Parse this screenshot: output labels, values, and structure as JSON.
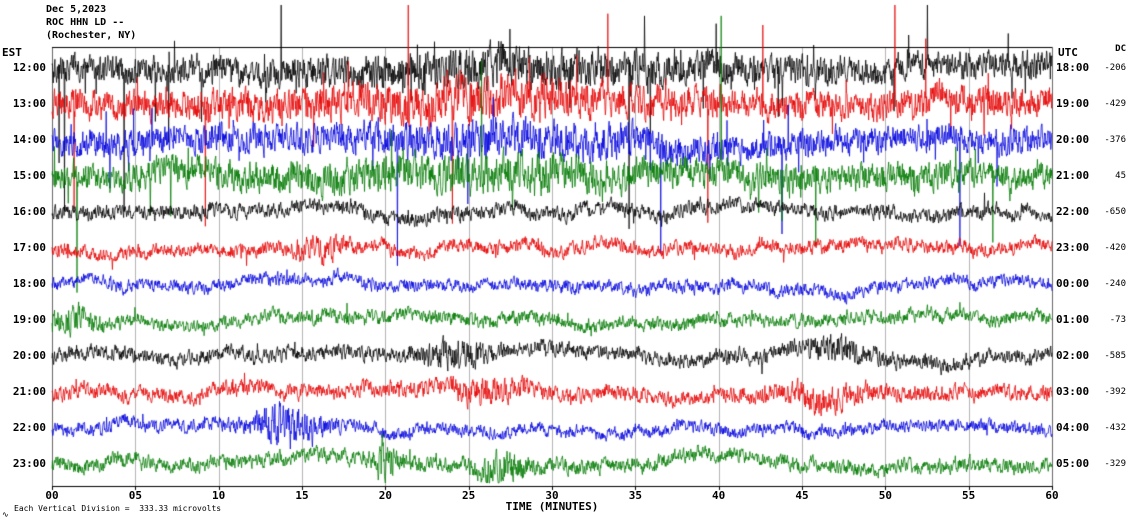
{
  "header": {
    "date": "Dec 5,2023",
    "station": "ROC HHN LD --",
    "location": "(Rochester, NY)"
  },
  "axis": {
    "left_tz": "EST",
    "right_tz": "UTC",
    "dc_header": "DC",
    "x_label": "TIME (MINUTES)",
    "x_ticks": [
      "00",
      "05",
      "10",
      "15",
      "20",
      "25",
      "30",
      "35",
      "40",
      "45",
      "50",
      "55",
      "60"
    ]
  },
  "footer": {
    "scale_note": "Each Vertical Division =  333.33 microvolts",
    "watermark": "∿"
  },
  "chart_data": {
    "type": "line",
    "title": "Helicorder ROC HHN LD -- Dec 5,2023",
    "xlabel": "TIME (MINUTES)",
    "x_range": [
      0,
      60
    ],
    "x_tick_step": 5,
    "left_time_zone": "EST",
    "right_time_zone": "UTC",
    "vertical_division_microvolts": 333.33,
    "legend_position": "none",
    "grid": true,
    "colors": {
      "black": "#000000",
      "red": "#e60000",
      "blue": "#0000dd",
      "green": "#007a00"
    },
    "rows": [
      {
        "est": "12:00",
        "utc": "18:00",
        "dc": "-206",
        "color": "black",
        "amp": 11,
        "sp": 0.03,
        "sa": 40,
        "bp": 0.002,
        "ba": 180,
        "events": [
          [
            28,
            12,
            6
          ]
        ]
      },
      {
        "est": "13:00",
        "utc": "19:00",
        "dc": "-429",
        "color": "red",
        "amp": 12,
        "sp": 0.03,
        "sa": 42,
        "bp": 0.002,
        "ba": 160,
        "events": [
          [
            25,
            10,
            6
          ]
        ]
      },
      {
        "est": "14:00",
        "utc": "20:00",
        "dc": "-376",
        "color": "blue",
        "amp": 11,
        "sp": 0.025,
        "sa": 38,
        "bp": 0.0015,
        "ba": 150,
        "events": [
          [
            27,
            10,
            5
          ]
        ]
      },
      {
        "est": "15:00",
        "utc": "21:00",
        "dc": "45",
        "color": "green",
        "amp": 11,
        "sp": 0.025,
        "sa": 36,
        "bp": 0.0015,
        "ba": 140,
        "events": [
          [
            25,
            12,
            5
          ]
        ]
      },
      {
        "est": "16:00",
        "utc": "22:00",
        "dc": "-650",
        "color": "black",
        "amp": 6.0,
        "sp": 0.008,
        "sa": 16,
        "bp": 0,
        "ba": 0,
        "events": []
      },
      {
        "est": "17:00",
        "utc": "23:00",
        "dc": "-420",
        "color": "red",
        "amp": 5.5,
        "sp": 0.008,
        "sa": 14,
        "bp": 0,
        "ba": 0,
        "events": [
          [
            16,
            1.5,
            6
          ]
        ]
      },
      {
        "est": "18:00",
        "utc": "00:00",
        "dc": "-240",
        "color": "blue",
        "amp": 5.0,
        "sp": 0.006,
        "sa": 12,
        "bp": 0,
        "ba": 0,
        "events": []
      },
      {
        "est": "19:00",
        "utc": "01:00",
        "dc": "-73",
        "color": "green",
        "amp": 5.5,
        "sp": 0.008,
        "sa": 14,
        "bp": 0,
        "ba": 0,
        "events": [
          [
            1,
            1.5,
            8
          ]
        ]
      },
      {
        "est": "20:00",
        "utc": "02:00",
        "dc": "-585",
        "color": "black",
        "amp": 6.0,
        "sp": 0.007,
        "sa": 13,
        "bp": 0,
        "ba": 0,
        "events": [
          [
            24,
            2,
            7
          ],
          [
            47,
            2,
            5
          ]
        ]
      },
      {
        "est": "21:00",
        "utc": "03:00",
        "dc": "-392",
        "color": "red",
        "amp": 6.0,
        "sp": 0.008,
        "sa": 14,
        "bp": 0,
        "ba": 0,
        "events": [
          [
            26,
            2,
            8
          ],
          [
            46,
            3,
            6
          ]
        ]
      },
      {
        "est": "22:00",
        "utc": "04:00",
        "dc": "-432",
        "color": "blue",
        "amp": 5.0,
        "sp": 0.006,
        "sa": 12,
        "bp": 0,
        "ba": 0,
        "events": [
          [
            14,
            2,
            14
          ]
        ]
      },
      {
        "est": "23:00",
        "utc": "05:00",
        "dc": "-329",
        "color": "green",
        "amp": 6.0,
        "sp": 0.008,
        "sa": 14,
        "bp": 0,
        "ba": 0,
        "events": [
          [
            20,
            0.6,
            16
          ],
          [
            27,
            1.5,
            8
          ]
        ]
      }
    ]
  }
}
